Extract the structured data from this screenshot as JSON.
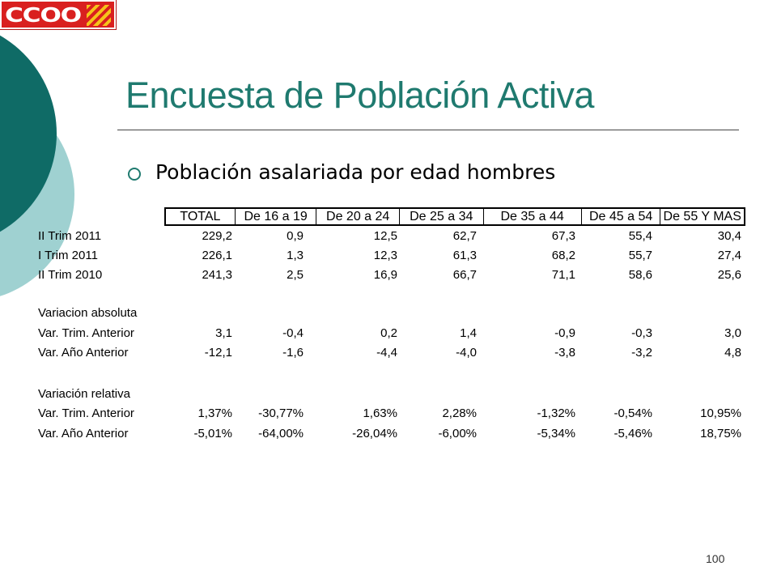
{
  "logo": {
    "text": "CCOO"
  },
  "slide": {
    "title": "Encuesta de Población Activa",
    "bullet": "Población asalariada por edad hombres",
    "page_number": "100"
  },
  "table": {
    "headers": [
      "TOTAL",
      "De 16 a 19",
      "De 20 a 24",
      "De 25 a 34",
      "De 35 a 44",
      "De 45 a 54",
      "De 55 Y MAS"
    ],
    "rows": [
      {
        "label": "II Trim 2011",
        "values": [
          "229,2",
          "0,9",
          "12,5",
          "62,7",
          "67,3",
          "55,4",
          "30,4"
        ]
      },
      {
        "label": "I Trim 2011",
        "values": [
          "226,1",
          "1,3",
          "12,3",
          "61,3",
          "68,2",
          "55,7",
          "27,4"
        ]
      },
      {
        "label": "II Trim 2010",
        "values": [
          "241,3",
          "2,5",
          "16,9",
          "66,7",
          "71,1",
          "58,6",
          "25,6"
        ]
      },
      {
        "label": "Variacion absoluta",
        "values": []
      },
      {
        "label": "Var. Trim. Anterior",
        "values": [
          "3,1",
          "-0,4",
          "0,2",
          "1,4",
          "-0,9",
          "-0,3",
          "3,0"
        ]
      },
      {
        "label": "Var. Año Anterior",
        "values": [
          "-12,1",
          "-1,6",
          "-4,4",
          "-4,0",
          "-3,8",
          "-3,2",
          "4,8"
        ]
      },
      {
        "label": "Variación relativa",
        "values": []
      },
      {
        "label": "Var. Trim. Anterior",
        "values": [
          "1,37%",
          "-30,77%",
          "1,63%",
          "2,28%",
          "-1,32%",
          "-0,54%",
          "10,95%"
        ]
      },
      {
        "label": "Var. Año Anterior",
        "values": [
          "-5,01%",
          "-64,00%",
          "-26,04%",
          "-6,00%",
          "-5,34%",
          "-5,46%",
          "18,75%"
        ]
      }
    ]
  },
  "colors": {
    "title": "#1f7a6f",
    "deco_dark": "#0f6b66",
    "deco_light": "#9fd1d1",
    "logo_red": "#d9201f"
  }
}
